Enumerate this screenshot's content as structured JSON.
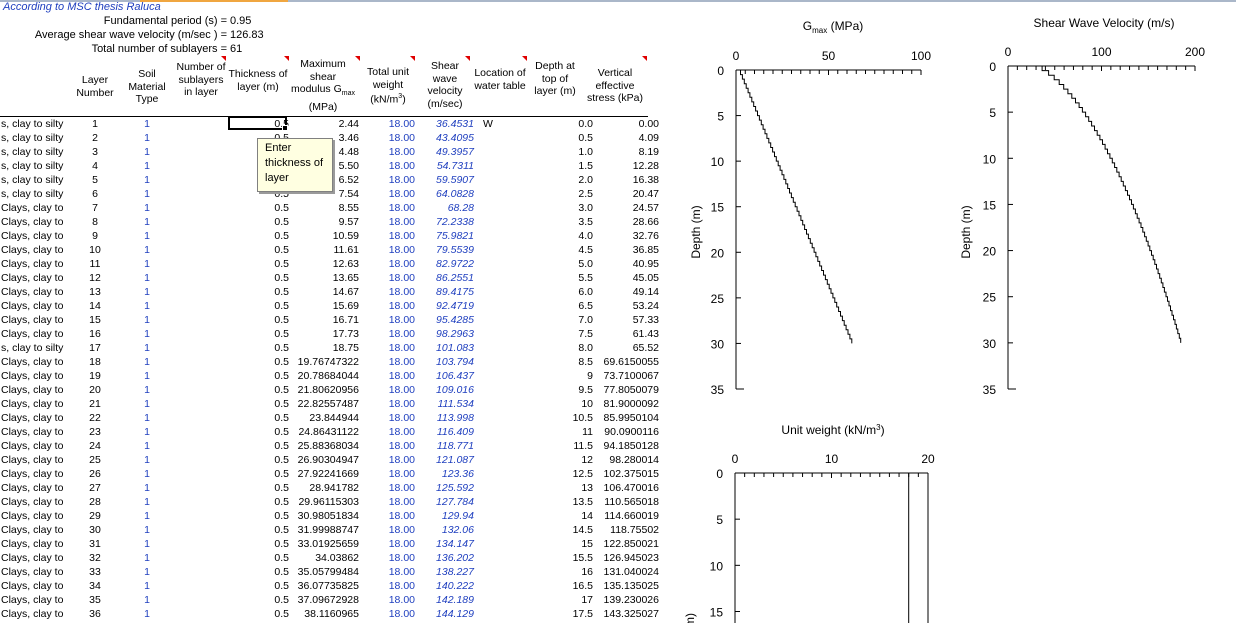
{
  "sheet": {
    "title": "According to MSC thesis Raluca",
    "summary": [
      {
        "label": "Fundamental period (s) =",
        "value": "0.95"
      },
      {
        "label": "Average shear wave velocity (m/sec ) =",
        "value": "126.83"
      },
      {
        "label": "Total number of  sublayers =",
        "value": "61"
      }
    ],
    "headers": {
      "layer_number": "Layer Number",
      "soil_material_type": "Soil Material Type",
      "number_of_sublayers": "Number of sublayers in layer",
      "thickness": "Thickness of layer (m)",
      "gmax_line1": "Maximum shear",
      "gmax_line2": "modulus G",
      "gmax_sub": "max",
      "gmax_unit": "(MPa)",
      "unit_weight_line1": "Total unit weight",
      "unit_weight_unit": "(kN/m",
      "unit_weight_sup": "3",
      "unit_weight_close": ")",
      "shear_wave_velocity": "Shear wave velocity (m/sec)",
      "water_table": "Location of water table",
      "depth_top": "Depth at top of layer (m)",
      "vertical_stress": "Vertical effective stress (kPa)"
    },
    "tooltip": "Enter thickness of layer",
    "rows": [
      [
        "s, clay to silty",
        "1",
        "1",
        "0.5",
        "2.44",
        "18.00",
        "36.4531",
        "W",
        "0.0",
        "0.00"
      ],
      [
        "s, clay to silty",
        "2",
        "1",
        "0.5",
        "3.46",
        "18.00",
        "43.4095",
        "",
        "0.5",
        "4.09"
      ],
      [
        "s, clay to silty",
        "3",
        "1",
        "0.5",
        "4.48",
        "18.00",
        "49.3957",
        "",
        "1.0",
        "8.19"
      ],
      [
        "s, clay to silty",
        "4",
        "1",
        "0.5",
        "5.50",
        "18.00",
        "54.7311",
        "",
        "1.5",
        "12.28"
      ],
      [
        "s, clay to silty",
        "5",
        "1",
        "0.5",
        "6.52",
        "18.00",
        "59.5907",
        "",
        "2.0",
        "16.38"
      ],
      [
        "s, clay to silty",
        "6",
        "1",
        "0.5",
        "7.54",
        "18.00",
        "64.0828",
        "",
        "2.5",
        "20.47"
      ],
      [
        "Clays, clay to",
        "7",
        "1",
        "0.5",
        "8.55",
        "18.00",
        "68.28",
        "",
        "3.0",
        "24.57"
      ],
      [
        "Clays, clay to",
        "8",
        "1",
        "0.5",
        "9.57",
        "18.00",
        "72.2338",
        "",
        "3.5",
        "28.66"
      ],
      [
        "Clays, clay to",
        "9",
        "1",
        "0.5",
        "10.59",
        "18.00",
        "75.9821",
        "",
        "4.0",
        "32.76"
      ],
      [
        "Clays, clay to",
        "10",
        "1",
        "0.5",
        "11.61",
        "18.00",
        "79.5539",
        "",
        "4.5",
        "36.85"
      ],
      [
        "Clays, clay to",
        "11",
        "1",
        "0.5",
        "12.63",
        "18.00",
        "82.9722",
        "",
        "5.0",
        "40.95"
      ],
      [
        "Clays, clay to",
        "12",
        "1",
        "0.5",
        "13.65",
        "18.00",
        "86.2551",
        "",
        "5.5",
        "45.05"
      ],
      [
        "Clays, clay to",
        "13",
        "1",
        "0.5",
        "14.67",
        "18.00",
        "89.4175",
        "",
        "6.0",
        "49.14"
      ],
      [
        "Clays, clay to",
        "14",
        "1",
        "0.5",
        "15.69",
        "18.00",
        "92.4719",
        "",
        "6.5",
        "53.24"
      ],
      [
        "Clays, clay to",
        "15",
        "1",
        "0.5",
        "16.71",
        "18.00",
        "95.4285",
        "",
        "7.0",
        "57.33"
      ],
      [
        "Clays, clay to",
        "16",
        "1",
        "0.5",
        "17.73",
        "18.00",
        "98.2963",
        "",
        "7.5",
        "61.43"
      ],
      [
        "s, clay to silty",
        "17",
        "1",
        "0.5",
        "18.75",
        "18.00",
        "101.083",
        "",
        "8.0",
        "65.52"
      ],
      [
        "Clays, clay to",
        "18",
        "1",
        "0.5",
        "19.76747322",
        "18.00",
        "103.794",
        "",
        "8.5",
        "69.6150055"
      ],
      [
        "Clays, clay to",
        "19",
        "1",
        "0.5",
        "20.78684044",
        "18.00",
        "106.437",
        "",
        "9",
        "73.7100067"
      ],
      [
        "Clays, clay to",
        "20",
        "1",
        "0.5",
        "21.80620956",
        "18.00",
        "109.016",
        "",
        "9.5",
        "77.8050079"
      ],
      [
        "Clays, clay to",
        "21",
        "1",
        "0.5",
        "22.82557487",
        "18.00",
        "111.534",
        "",
        "10",
        "81.9000092"
      ],
      [
        "Clays, clay to",
        "22",
        "1",
        "0.5",
        "23.844944",
        "18.00",
        "113.998",
        "",
        "10.5",
        "85.9950104"
      ],
      [
        "Clays, clay to",
        "23",
        "1",
        "0.5",
        "24.86431122",
        "18.00",
        "116.409",
        "",
        "11",
        "90.0900116"
      ],
      [
        "Clays, clay to",
        "24",
        "1",
        "0.5",
        "25.88368034",
        "18.00",
        "118.771",
        "",
        "11.5",
        "94.1850128"
      ],
      [
        "Clays, clay to",
        "25",
        "1",
        "0.5",
        "26.90304947",
        "18.00",
        "121.087",
        "",
        "12",
        "98.280014"
      ],
      [
        "Clays, clay to",
        "26",
        "1",
        "0.5",
        "27.92241669",
        "18.00",
        "123.36",
        "",
        "12.5",
        "102.375015"
      ],
      [
        "Clays, clay to",
        "27",
        "1",
        "0.5",
        "28.941782",
        "18.00",
        "125.592",
        "",
        "13",
        "106.470016"
      ],
      [
        "Clays, clay to",
        "28",
        "1",
        "0.5",
        "29.96115303",
        "18.00",
        "127.784",
        "",
        "13.5",
        "110.565018"
      ],
      [
        "Clays, clay to",
        "29",
        "1",
        "0.5",
        "30.98051834",
        "18.00",
        "129.94",
        "",
        "14",
        "114.660019"
      ],
      [
        "Clays, clay to",
        "30",
        "1",
        "0.5",
        "31.99988747",
        "18.00",
        "132.06",
        "",
        "14.5",
        "118.75502"
      ],
      [
        "Clays, clay to",
        "31",
        "1",
        "0.5",
        "33.01925659",
        "18.00",
        "134.147",
        "",
        "15",
        "122.850021"
      ],
      [
        "Clays, clay to",
        "32",
        "1",
        "0.5",
        "34.03862",
        "18.00",
        "136.202",
        "",
        "15.5",
        "126.945023"
      ],
      [
        "Clays, clay to",
        "33",
        "1",
        "0.5",
        "35.05799484",
        "18.00",
        "138.227",
        "",
        "16",
        "131.040024"
      ],
      [
        "Clays, clay to",
        "34",
        "1",
        "0.5",
        "36.07735825",
        "18.00",
        "140.222",
        "",
        "16.5",
        "135.135025"
      ],
      [
        "Clays, clay to",
        "35",
        "1",
        "0.5",
        "37.09672928",
        "18.00",
        "142.189",
        "",
        "17",
        "139.230026"
      ],
      [
        "Clays, clay to",
        "36",
        "1",
        "0.5",
        "38.1160965",
        "18.00",
        "144.129",
        "",
        "17.5",
        "143.325027"
      ]
    ]
  },
  "chart_data": [
    {
      "type": "line",
      "title": "G",
      "title_sub": "max",
      "title_unit": " (MPa)",
      "ylabel": "Depth (m)",
      "xlim": [
        0,
        100
      ],
      "ylim": [
        0,
        35
      ],
      "y_reversed": true,
      "x_axis_position": "top",
      "x_ticks": [
        "0",
        "50",
        "100"
      ],
      "y_ticks": [
        "0",
        "5",
        "10",
        "15",
        "20",
        "25",
        "30",
        "35"
      ],
      "series": [
        {
          "type": "step",
          "x_start": 2.44,
          "x_step": 1.0194,
          "y_step": 0.5,
          "y_end": 30
        }
      ]
    },
    {
      "type": "line",
      "title": "Shear Wave Velocity (m/s)",
      "ylabel": "Depth (m)",
      "xlim": [
        0,
        200
      ],
      "ylim": [
        0,
        35
      ],
      "y_reversed": true,
      "x_axis_position": "top",
      "x_ticks": [
        "0",
        "100",
        "200"
      ],
      "y_ticks": [
        "0",
        "5",
        "10",
        "15",
        "20",
        "25",
        "30",
        "35"
      ],
      "series": [
        {
          "type": "step",
          "vs_from_gmax": true,
          "unit_weight": 18,
          "y_step": 0.5,
          "y_end": 30
        }
      ]
    },
    {
      "type": "line",
      "title": "Unit weight (kN/m",
      "title_sup": "3",
      "title_close": ")",
      "ylabel": "Depth (m)",
      "ylabel_visible": "m)",
      "xlim": [
        0,
        20
      ],
      "ylim": [
        0,
        30
      ],
      "y_reversed": true,
      "x_axis_position": "top",
      "x_ticks": [
        "0",
        "10",
        "20"
      ],
      "y_ticks": [
        "0",
        "5",
        "10",
        "15"
      ],
      "series": [
        {
          "type": "constant",
          "x": 18
        }
      ]
    }
  ]
}
